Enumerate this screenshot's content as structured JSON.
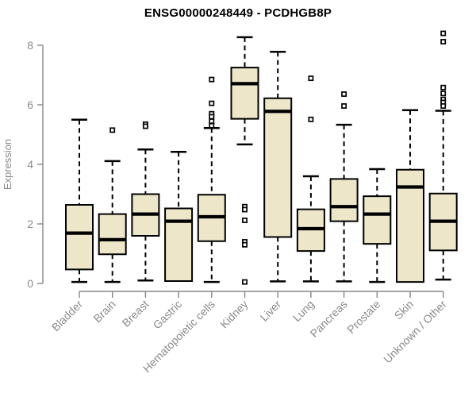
{
  "chart_data": {
    "type": "box",
    "title": "ENSG00000248449 - PCDHGB8P",
    "ylabel": "Expression",
    "xlabel": "",
    "ylim": [
      0,
      8
    ],
    "yticks": [
      0,
      2,
      4,
      6,
      8
    ],
    "grid": false,
    "legend_position": "none",
    "categories": [
      "Bladder",
      "Brain",
      "Breast",
      "Gastric",
      "Hematopoietic cells",
      "Kidney",
      "Liver",
      "Lung",
      "Pancreas",
      "Prostate",
      "Skin",
      "Unknown / Other"
    ],
    "series": [
      {
        "name": "Bladder",
        "whisker_low": 0.05,
        "q1": 0.47,
        "median": 1.69,
        "q3": 2.64,
        "whisker_high": 5.5,
        "outliers": []
      },
      {
        "name": "Brain",
        "whisker_low": 0.05,
        "q1": 0.98,
        "median": 1.47,
        "q3": 2.33,
        "whisker_high": 4.11,
        "outliers": [
          5.15
        ]
      },
      {
        "name": "Breast",
        "whisker_low": 0.1,
        "q1": 1.6,
        "median": 2.33,
        "q3": 3.0,
        "whisker_high": 4.5,
        "outliers": [
          5.35,
          5.28
        ]
      },
      {
        "name": "Gastric",
        "whisker_low": 0.08,
        "q1": 0.08,
        "median": 2.09,
        "q3": 2.52,
        "whisker_high": 4.42,
        "outliers": []
      },
      {
        "name": "Hematopoietic cells",
        "whisker_low": 0.05,
        "q1": 1.42,
        "median": 2.24,
        "q3": 2.98,
        "whisker_high": 5.22,
        "outliers": [
          6.85,
          6.05,
          5.7,
          5.6,
          5.45,
          5.3
        ]
      },
      {
        "name": "Kidney",
        "whisker_low": 4.67,
        "q1": 5.53,
        "median": 6.71,
        "q3": 7.25,
        "whisker_high": 8.27,
        "outliers": [
          2.58,
          2.48,
          2.12,
          1.4,
          1.3,
          0.05
        ]
      },
      {
        "name": "Liver",
        "whisker_low": 0.07,
        "q1": 1.56,
        "median": 5.78,
        "q3": 6.22,
        "whisker_high": 7.78,
        "outliers": []
      },
      {
        "name": "Lung",
        "whisker_low": 0.07,
        "q1": 1.09,
        "median": 1.84,
        "q3": 2.49,
        "whisker_high": 3.6,
        "outliers": [
          6.89,
          5.51
        ]
      },
      {
        "name": "Pancreas",
        "whisker_low": 0.07,
        "q1": 2.09,
        "median": 2.58,
        "q3": 3.51,
        "whisker_high": 5.33,
        "outliers": [
          6.36,
          5.96
        ]
      },
      {
        "name": "Prostate",
        "whisker_low": 0.05,
        "q1": 1.33,
        "median": 2.33,
        "q3": 2.93,
        "whisker_high": 3.84,
        "outliers": []
      },
      {
        "name": "Skin",
        "whisker_low": 0.05,
        "q1": 0.05,
        "median": 3.24,
        "q3": 3.82,
        "whisker_high": 5.82,
        "outliers": []
      },
      {
        "name": "Unknown / Other",
        "whisker_low": 0.13,
        "q1": 1.11,
        "median": 2.09,
        "q3": 3.02,
        "whisker_high": 5.8,
        "outliers": [
          8.4,
          8.12,
          6.58,
          6.38,
          6.18,
          6.08,
          5.96
        ]
      }
    ],
    "colors": {
      "box_fill": "#EDE6C9",
      "box_border": "#000000",
      "median": "#000000",
      "whisker": "#000000",
      "axis": "#878787",
      "tick_text": "#8A8A8A",
      "title_text": "#000000",
      "background": "#FFFFFF"
    }
  }
}
